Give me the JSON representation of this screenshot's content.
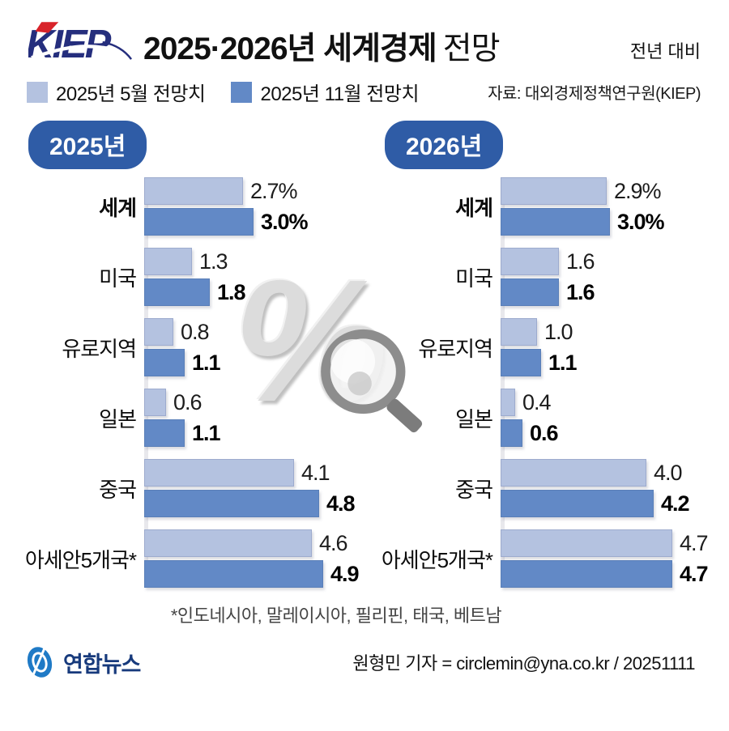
{
  "header": {
    "logo_text": "KIEP",
    "title_strong": "2025·2026년 세계경제",
    "title_light": "전망",
    "top_right_note": "전년 대비"
  },
  "legend": {
    "items": [
      {
        "label": "2025년 5월 전망치",
        "color": "#b4c2e0"
      },
      {
        "label": "2025년 11월 전망치",
        "color": "#6289c6"
      }
    ],
    "source": "자료: 대외경제정책연구원(KIEP)"
  },
  "chart_data": {
    "type": "bar",
    "orientation": "horizontal",
    "unit": "%",
    "axis_max": 5.0,
    "grid": false,
    "categories": [
      {
        "label": "세계",
        "bold": true
      },
      {
        "label": "미국",
        "bold": false
      },
      {
        "label": "유로지역",
        "bold": false
      },
      {
        "label": "일본",
        "bold": false
      },
      {
        "label": "중국",
        "bold": false
      },
      {
        "label": "아세안5개국*",
        "bold": false
      }
    ],
    "series_names": [
      "2025년 5월 전망치",
      "2025년 11월 전망치"
    ],
    "panels": [
      {
        "title": "2025년",
        "may": {
          "values": [
            2.7,
            1.3,
            0.8,
            0.6,
            4.1,
            4.6
          ],
          "labels": [
            "2.7%",
            "1.3",
            "0.8",
            "0.6",
            "4.1",
            "4.6"
          ]
        },
        "nov": {
          "values": [
            3.0,
            1.8,
            1.1,
            1.1,
            4.8,
            4.9
          ],
          "labels": [
            "3.0%",
            "1.8",
            "1.1",
            "1.1",
            "4.8",
            "4.9"
          ]
        }
      },
      {
        "title": "2026년",
        "may": {
          "values": [
            2.9,
            1.6,
            1.0,
            0.4,
            4.0,
            4.7
          ],
          "labels": [
            "2.9%",
            "1.6",
            "1.0",
            "0.4",
            "4.0",
            "4.7"
          ]
        },
        "nov": {
          "values": [
            3.0,
            1.6,
            1.1,
            0.6,
            4.2,
            4.7
          ],
          "labels": [
            "3.0%",
            "1.6",
            "1.1",
            "0.6",
            "4.2",
            "4.7"
          ]
        }
      }
    ],
    "footnote": "*인도네시아, 말레이시아, 필리핀, 태국, 베트남"
  },
  "footer": {
    "agency": "연합뉴스",
    "byline": "원형민 기자 = circlemin@yna.co.kr / 20251111"
  },
  "colors": {
    "bar_light": "#b4c2e0",
    "bar_light_border": "#9dabce",
    "bar_dark": "#6289c6",
    "bar_dark_border": "#5a7fb8",
    "badge_bg": "#2f5ca6",
    "logo_navy": "#252e7d",
    "logo_red": "#d8232a",
    "agency_blue": "#1f7ac6",
    "agency_navy": "#173a7c"
  }
}
